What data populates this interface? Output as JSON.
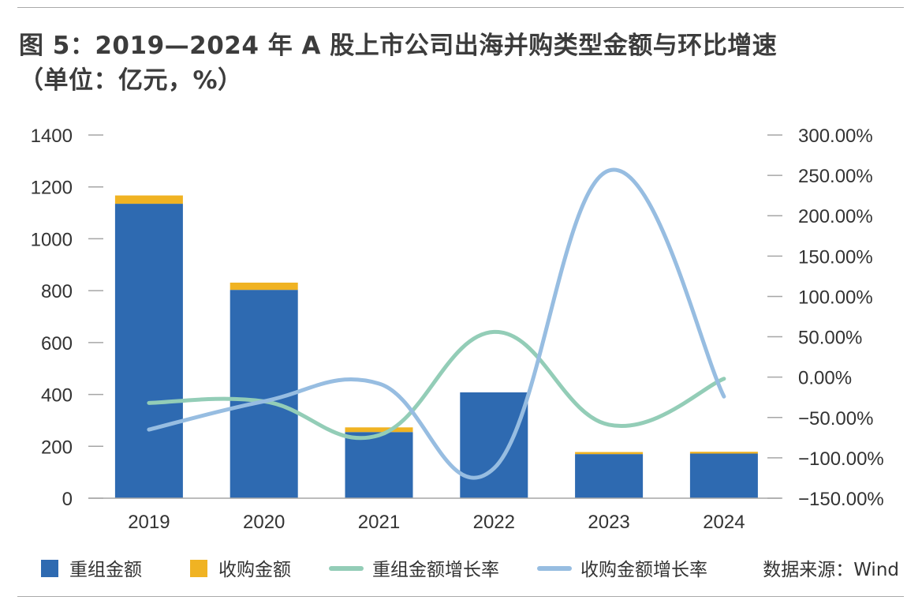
{
  "title_line1": "图 5：2019—2024 年 A 股上市公司出海并购类型金额与环比增速",
  "title_line2": "（单位：亿元，%）",
  "source": "数据来源：Wind",
  "chart_data": {
    "type": "bar",
    "categories": [
      "2019",
      "2020",
      "2021",
      "2022",
      "2023",
      "2024"
    ],
    "series": [
      {
        "name": "重组金额",
        "kind": "bar",
        "axis": "left",
        "stack": "total",
        "color": "#2e6ab1",
        "values": [
          1135,
          803,
          255,
          408,
          170,
          172
        ]
      },
      {
        "name": "收购金额",
        "kind": "bar",
        "axis": "left",
        "stack": "total",
        "color": "#f0b323",
        "values": [
          32,
          28,
          18,
          0,
          8,
          7
        ]
      },
      {
        "name": "重组金额增长率",
        "kind": "line",
        "axis": "right",
        "color": "#93cdb7",
        "values": [
          -32,
          -30,
          -72,
          56,
          -59,
          -2
        ]
      },
      {
        "name": "收购金额增长率",
        "kind": "line",
        "axis": "right",
        "color": "#97bde1",
        "values": [
          -65,
          -30,
          -8,
          -113,
          256,
          -24
        ]
      }
    ],
    "y_left": {
      "min": 0,
      "max": 1400,
      "ticks": [
        "0",
        "200",
        "400",
        "600",
        "800",
        "1000",
        "1200",
        "1400"
      ]
    },
    "y_right": {
      "min": -150,
      "max": 300,
      "ticks": [
        "−150.00%",
        "−100.00%",
        "−50.00%",
        "0.00%",
        "50.00%",
        "100.00%",
        "150.00%",
        "200.00%",
        "250.00%",
        "300.00%"
      ]
    },
    "grid": false,
    "legend_position": "bottom"
  }
}
